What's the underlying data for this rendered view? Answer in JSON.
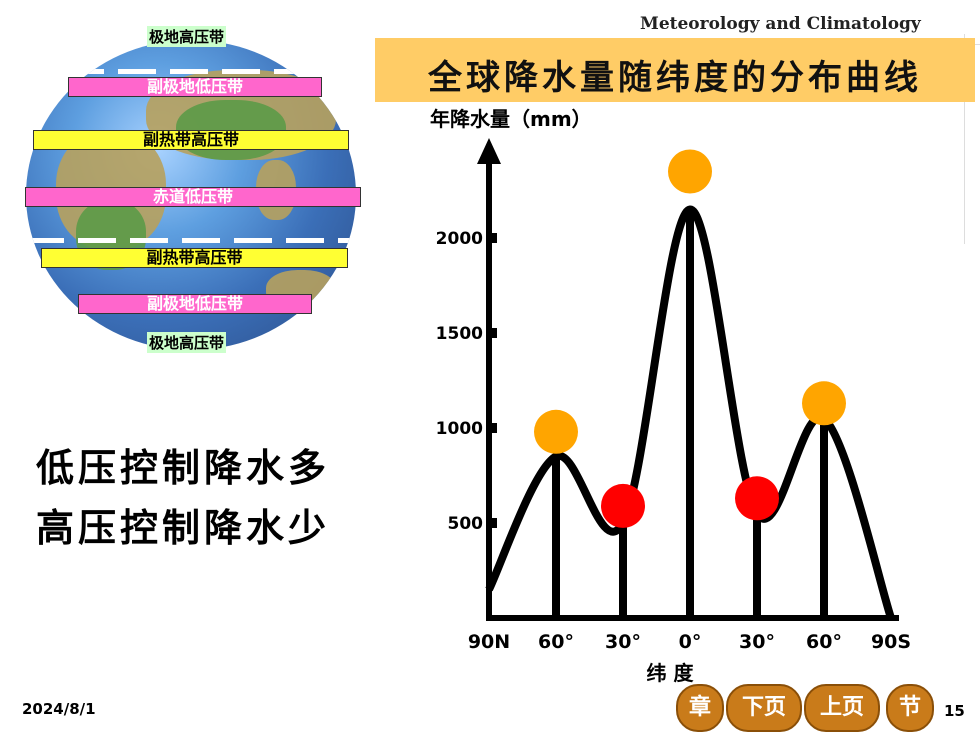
{
  "header": {
    "subject": "Meteorology  and  Climatology"
  },
  "title": "全球降水量随纬度的分布曲线",
  "globe": {
    "belts": [
      {
        "label": "极地高压带",
        "style": "polar"
      },
      {
        "label": "副极地低压带",
        "style": "pink"
      },
      {
        "label": "副热带高压带",
        "style": "yellow"
      },
      {
        "label": "赤道低压带",
        "style": "pink"
      },
      {
        "label": "副热带高压带",
        "style": "yellow"
      },
      {
        "label": "副极地低压带",
        "style": "pink"
      },
      {
        "label": "极地高压带",
        "style": "polar"
      }
    ]
  },
  "rules": {
    "line1": "低压控制降水多",
    "line2": "高压控制降水少"
  },
  "chart_data": {
    "type": "line",
    "ylabel": "年降水量（mm）",
    "xlabel": "纬  度",
    "x_tick_labels": [
      "90N",
      "60°",
      "30°",
      "0°",
      "30°",
      "60°",
      "90S"
    ],
    "y_ticks": [
      500,
      1000,
      1500,
      2000
    ],
    "x": [
      -90,
      -60,
      -30,
      0,
      30,
      60,
      90
    ],
    "points": [
      {
        "lat": -90,
        "value": 150
      },
      {
        "lat": -60,
        "value": 850
      },
      {
        "lat": -30,
        "value": 500
      },
      {
        "lat": 0,
        "value": 2150
      },
      {
        "lat": 30,
        "value": 550
      },
      {
        "lat": 60,
        "value": 1050
      },
      {
        "lat": 90,
        "value": 0
      }
    ],
    "markers": [
      {
        "lat": -60,
        "value": 980,
        "color": "#ffa500",
        "kind": "low-pressure"
      },
      {
        "lat": -30,
        "value": 590,
        "color": "#ff0000",
        "kind": "high-pressure"
      },
      {
        "lat": 0,
        "value": 2350,
        "color": "#ffa500",
        "kind": "low-pressure"
      },
      {
        "lat": 30,
        "value": 630,
        "color": "#ff0000",
        "kind": "high-pressure"
      },
      {
        "lat": 60,
        "value": 1130,
        "color": "#ffa500",
        "kind": "low-pressure"
      }
    ],
    "ylim": [
      0,
      2500
    ]
  },
  "footer": {
    "date": "2024/8/1",
    "page": "15"
  },
  "nav": {
    "chapter": "章",
    "next": "下页",
    "prev": "上页",
    "section": "节"
  }
}
